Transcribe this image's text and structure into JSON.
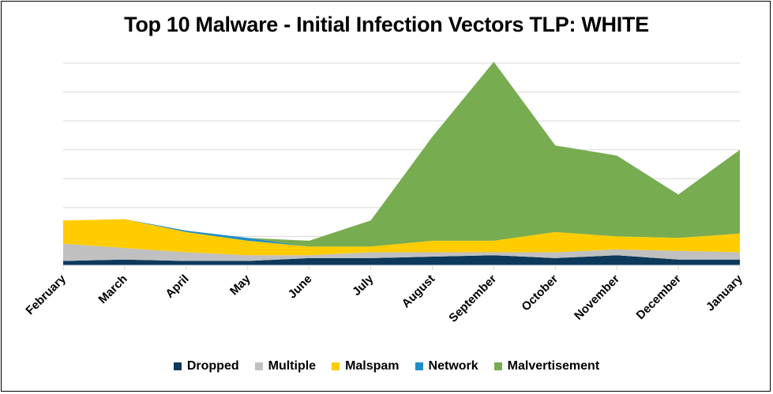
{
  "chart_data": {
    "type": "area",
    "stacked": true,
    "title": "Top 10 Malware - Initial Infection Vectors TLP: WHITE",
    "xlabel": "",
    "ylabel": "",
    "categories": [
      "February",
      "March",
      "April",
      "May",
      "June",
      "July",
      "August",
      "September",
      "October",
      "November",
      "December",
      "January"
    ],
    "ylim": [
      0,
      70
    ],
    "y_tick_values": [
      0,
      10,
      20,
      30,
      40,
      50,
      60,
      70
    ],
    "y_tick_labels_shown": false,
    "grid": true,
    "legend_position": "bottom",
    "series": [
      {
        "name": "Dropped",
        "color": "#0d3a5c",
        "values": [
          1.5,
          2,
          1.5,
          1.5,
          2.5,
          2.5,
          3,
          3.5,
          2.5,
          3.5,
          2,
          2
        ]
      },
      {
        "name": "Multiple",
        "color": "#c0c0c0",
        "values": [
          6,
          4,
          3,
          2,
          1,
          2,
          1.5,
          1,
          2,
          2,
          3,
          2.5
        ]
      },
      {
        "name": "Malspam",
        "color": "#ffcc00",
        "values": [
          8,
          10,
          7,
          5,
          3,
          2,
          4,
          4,
          7,
          4.5,
          4.5,
          6.5
        ]
      },
      {
        "name": "Network",
        "color": "#1f8dc8",
        "values": [
          0,
          0,
          0.5,
          1,
          0,
          0,
          0,
          0,
          0,
          0,
          0,
          0
        ]
      },
      {
        "name": "Malvertisement",
        "color": "#77ac50",
        "values": [
          0,
          0,
          0,
          0,
          2,
          9,
          36,
          62,
          30,
          28,
          15,
          29
        ]
      }
    ]
  }
}
